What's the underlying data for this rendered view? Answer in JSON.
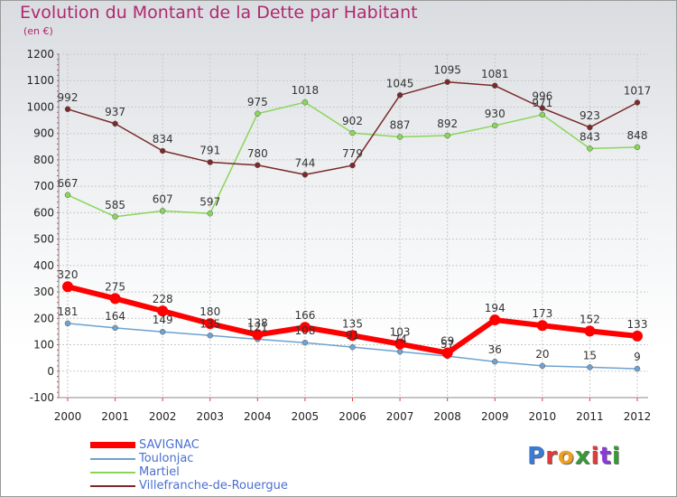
{
  "title": "Evolution du Montant de la Dette par Habitant",
  "unit": "(en €)",
  "logo": {
    "text": "Proxiti",
    "colors": [
      "#3a7bd5",
      "#e23b3b",
      "#f0a020",
      "#3a9a3a",
      "#e23b3b",
      "#8a3ad5",
      "#3a9a3a"
    ]
  },
  "chart_data": {
    "type": "line",
    "title": "Evolution du Montant de la Dette par Habitant",
    "ylabel": "(en €)",
    "xlabel": "",
    "ylim": [
      -100,
      1200
    ],
    "yticks": [
      -100,
      0,
      100,
      200,
      300,
      400,
      500,
      600,
      700,
      800,
      900,
      1000,
      1100,
      1200
    ],
    "grid": true,
    "legend": "bottom-left",
    "x": [
      "2000",
      "2001",
      "2002",
      "2003",
      "2004",
      "2005",
      "2006",
      "2007",
      "2008",
      "2009",
      "2010",
      "2011",
      "2012"
    ],
    "series": [
      {
        "name": "SAVIGNAC",
        "color": "#ff0000",
        "width": 6,
        "values": [
          320,
          275,
          228,
          180,
          138,
          166,
          135,
          103,
          69,
          194,
          173,
          152,
          133
        ]
      },
      {
        "name": "Toulonjac",
        "color": "#6ea2d0",
        "width": 1.5,
        "values": [
          181,
          164,
          149,
          135,
          121,
          108,
          91,
          74,
          57,
          36,
          20,
          15,
          9
        ]
      },
      {
        "name": "Martiel",
        "color": "#8ad65a",
        "width": 1.5,
        "values": [
          667,
          585,
          607,
          597,
          975,
          1018,
          902,
          887,
          892,
          930,
          971,
          843,
          848
        ]
      },
      {
        "name": "Villefranche-de-Rouergue",
        "color": "#7a2a2a",
        "width": 1.5,
        "values": [
          992,
          937,
          834,
          791,
          780,
          744,
          779,
          1045,
          1095,
          1081,
          996,
          923,
          1017
        ]
      }
    ]
  }
}
